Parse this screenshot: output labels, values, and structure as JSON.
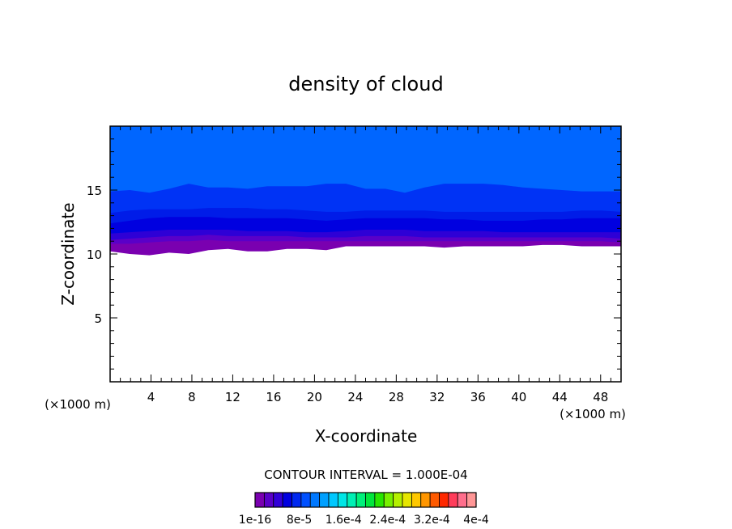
{
  "chart_data": {
    "type": "heatmap",
    "title": "density of cloud",
    "xlabel": "X-coordinate",
    "ylabel": "Z-coordinate",
    "x_unit": "(×1000 m)",
    "y_unit": "(×1000 m)",
    "xlim": [
      0,
      50
    ],
    "ylim": [
      0,
      20
    ],
    "x_ticks": [
      "4",
      "8",
      "12",
      "16",
      "20",
      "24",
      "28",
      "32",
      "36",
      "40",
      "44",
      "48"
    ],
    "y_ticks": [
      "5",
      "10",
      "15"
    ],
    "contour_interval_text": "CONTOUR INTERVAL = 1.000E-04",
    "colorbar_labels": [
      "1e-16",
      "8e-5",
      "1.6e-4",
      "2.4e-4",
      "3.2e-4",
      "4e-4"
    ],
    "colorbar_colors": [
      "#7a00b0",
      "#5a00c8",
      "#3200d8",
      "#0000e0",
      "#0028f0",
      "#0050ff",
      "#0078ff",
      "#00a0ff",
      "#00c8ff",
      "#00e6e6",
      "#00f0b4",
      "#00f07a",
      "#00e63c",
      "#28e600",
      "#78f000",
      "#b4f000",
      "#e6e600",
      "#ffc800",
      "#ff9600",
      "#ff5a00",
      "#ff2800",
      "#ff3c5a",
      "#ff6e8c",
      "#ff9696"
    ],
    "layers": [
      {
        "level": "1e-16",
        "color": "#7a00b0",
        "base_z": [
          10.2,
          10.0,
          9.9,
          10.1,
          10.0,
          10.3,
          10.4,
          10.2,
          10.2,
          10.4,
          10.4,
          10.3,
          10.6,
          10.6,
          10.6,
          10.6,
          10.6,
          10.5,
          10.6,
          10.6,
          10.6,
          10.6,
          10.7,
          10.7,
          10.6,
          10.6,
          10.6
        ]
      },
      {
        "level": "2e-5",
        "color": "#5a00c8",
        "base_z": [
          10.8,
          10.8,
          10.9,
          11.0,
          11.0,
          11.1,
          11.0,
          11.0,
          11.0,
          11.0,
          11.0,
          11.0,
          11.0,
          11.0,
          11.0,
          11.0,
          11.0,
          11.0,
          11.0,
          11.0,
          11.0,
          11.0,
          11.0,
          11.0,
          11.0,
          11.0,
          10.9
        ]
      },
      {
        "level": "4e-5",
        "color": "#2e00d6",
        "base_z": [
          11.1,
          11.2,
          11.3,
          11.4,
          11.4,
          11.5,
          11.4,
          11.4,
          11.4,
          11.4,
          11.3,
          11.3,
          11.3,
          11.4,
          11.4,
          11.4,
          11.3,
          11.3,
          11.3,
          11.3,
          11.3,
          11.3,
          11.3,
          11.3,
          11.3,
          11.3,
          11.2
        ]
      },
      {
        "level": "6e-5",
        "color": "#0000e0",
        "base_z": [
          11.6,
          11.7,
          11.8,
          11.9,
          11.9,
          11.9,
          11.9,
          11.8,
          11.8,
          11.8,
          11.7,
          11.7,
          11.8,
          11.9,
          11.9,
          11.9,
          11.8,
          11.8,
          11.8,
          11.8,
          11.7,
          11.7,
          11.7,
          11.7,
          11.7,
          11.7,
          11.7
        ]
      },
      {
        "level": "8e-5",
        "color": "#001ce8",
        "base_z": [
          12.4,
          12.6,
          12.8,
          12.9,
          12.9,
          12.9,
          12.8,
          12.8,
          12.8,
          12.8,
          12.7,
          12.6,
          12.7,
          12.8,
          12.8,
          12.8,
          12.8,
          12.7,
          12.7,
          12.6,
          12.6,
          12.6,
          12.7,
          12.7,
          12.8,
          12.8,
          12.8
        ]
      },
      {
        "level": "1e-4",
        "color": "#0033f5",
        "base_z": [
          13.2,
          13.4,
          13.5,
          13.5,
          13.5,
          13.6,
          13.6,
          13.6,
          13.5,
          13.5,
          13.4,
          13.3,
          13.3,
          13.4,
          13.4,
          13.4,
          13.4,
          13.3,
          13.3,
          13.3,
          13.3,
          13.3,
          13.3,
          13.3,
          13.4,
          13.4,
          13.3
        ]
      },
      {
        "level": "1.2e-4",
        "color": "#0066ff",
        "base_z": [
          14.9,
          15.0,
          14.8,
          15.1,
          15.5,
          15.2,
          15.2,
          15.1,
          15.3,
          15.3,
          15.3,
          15.5,
          15.5,
          15.1,
          15.1,
          14.8,
          15.2,
          15.5,
          15.5,
          15.5,
          15.4,
          15.2,
          15.1,
          15.0,
          14.9,
          14.9,
          14.9
        ]
      }
    ]
  }
}
